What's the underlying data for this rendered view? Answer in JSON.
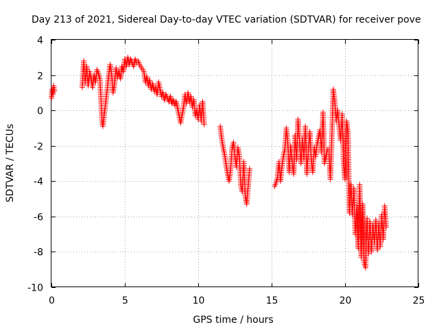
{
  "chart_data": {
    "type": "scatter",
    "title": "Day 213 of 2021, Sidereal Day-to-day VTEC variation (SDTVAR) for receiver pove",
    "xlabel": "GPS time / hours",
    "ylabel": "SDTVAR / TECUs",
    "xlim": [
      0,
      25
    ],
    "ylim": [
      -10,
      4
    ],
    "xticks": [
      0,
      5,
      10,
      15,
      20,
      25
    ],
    "yticks": [
      -10,
      -8,
      -6,
      -4,
      -2,
      0,
      2,
      4
    ],
    "xtick_labels": [
      "0",
      "5",
      "10",
      "15",
      "20",
      "25"
    ],
    "ytick_labels": [
      "-10",
      "-8",
      "-6",
      "-4",
      "-2",
      "0",
      "2",
      "4"
    ],
    "grid": true,
    "marker": "+",
    "series": [
      {
        "name": "SDTVAR",
        "color": "#ff0000",
        "points": [
          [
            0.0,
            0.7
          ],
          [
            0.05,
            1.2
          ],
          [
            0.1,
            0.9
          ],
          [
            0.15,
            1.4
          ],
          [
            0.2,
            1.1
          ],
          [
            2.1,
            1.3
          ],
          [
            2.2,
            2.8
          ],
          [
            2.3,
            1.6
          ],
          [
            2.4,
            2.5
          ],
          [
            2.5,
            1.4
          ],
          [
            2.6,
            2.2
          ],
          [
            2.7,
            1.8
          ],
          [
            2.8,
            1.3
          ],
          [
            2.9,
            2.0
          ],
          [
            3.0,
            1.6
          ],
          [
            3.1,
            2.3
          ],
          [
            3.2,
            2.1
          ],
          [
            3.3,
            1.8
          ],
          [
            3.4,
            0.2
          ],
          [
            3.45,
            -0.6
          ],
          [
            3.5,
            -0.9
          ],
          [
            3.6,
            -0.2
          ],
          [
            3.7,
            0.5
          ],
          [
            3.8,
            1.2
          ],
          [
            3.9,
            2.0
          ],
          [
            4.0,
            2.6
          ],
          [
            4.1,
            2.0
          ],
          [
            4.2,
            1.0
          ],
          [
            4.3,
            1.5
          ],
          [
            4.4,
            2.4
          ],
          [
            4.5,
            1.9
          ],
          [
            4.6,
            2.2
          ],
          [
            4.7,
            1.8
          ],
          [
            4.8,
            2.5
          ],
          [
            4.9,
            2.2
          ],
          [
            5.0,
            2.9
          ],
          [
            5.1,
            2.5
          ],
          [
            5.2,
            3.0
          ],
          [
            5.3,
            2.6
          ],
          [
            5.4,
            2.9
          ],
          [
            5.5,
            2.7
          ],
          [
            5.6,
            2.5
          ],
          [
            5.7,
            2.9
          ],
          [
            5.8,
            2.7
          ],
          [
            5.9,
            2.8
          ],
          [
            6.0,
            2.6
          ],
          [
            6.3,
            2.2
          ],
          [
            6.4,
            1.6
          ],
          [
            6.5,
            1.9
          ],
          [
            6.6,
            1.4
          ],
          [
            6.7,
            1.7
          ],
          [
            6.8,
            1.2
          ],
          [
            6.9,
            1.5
          ],
          [
            7.0,
            1.1
          ],
          [
            7.1,
            1.3
          ],
          [
            7.2,
            0.9
          ],
          [
            7.3,
            1.6
          ],
          [
            7.4,
            1.2
          ],
          [
            7.5,
            0.8
          ],
          [
            7.6,
            1.0
          ],
          [
            7.7,
            0.6
          ],
          [
            7.8,
            0.9
          ],
          [
            7.9,
            0.7
          ],
          [
            8.0,
            0.5
          ],
          [
            8.1,
            0.8
          ],
          [
            8.2,
            0.4
          ],
          [
            8.3,
            0.6
          ],
          [
            8.4,
            0.3
          ],
          [
            8.5,
            0.5
          ],
          [
            8.8,
            -0.7
          ],
          [
            9.0,
            0.2
          ],
          [
            9.1,
            0.9
          ],
          [
            9.2,
            0.4
          ],
          [
            9.3,
            1.0
          ],
          [
            9.4,
            0.5
          ],
          [
            9.5,
            0.8
          ],
          [
            9.6,
            0.2
          ],
          [
            9.7,
            0.6
          ],
          [
            9.8,
            -0.3
          ],
          [
            9.9,
            0.0
          ],
          [
            10.0,
            -0.5
          ],
          [
            10.1,
            0.3
          ],
          [
            10.2,
            -0.6
          ],
          [
            10.3,
            0.5
          ],
          [
            10.4,
            -0.8
          ],
          [
            11.5,
            -0.9
          ],
          [
            11.6,
            -1.6
          ],
          [
            11.7,
            -2.1
          ],
          [
            11.8,
            -2.5
          ],
          [
            11.9,
            -3.1
          ],
          [
            12.0,
            -3.6
          ],
          [
            12.1,
            -4.0
          ],
          [
            12.2,
            -3.4
          ],
          [
            12.3,
            -2.2
          ],
          [
            12.4,
            -1.8
          ],
          [
            12.5,
            -2.6
          ],
          [
            12.6,
            -3.2
          ],
          [
            12.7,
            -2.1
          ],
          [
            12.8,
            -2.6
          ],
          [
            12.9,
            -4.2
          ],
          [
            13.0,
            -4.6
          ],
          [
            13.1,
            -2.9
          ],
          [
            13.2,
            -4.8
          ],
          [
            13.3,
            -5.3
          ],
          [
            13.5,
            -3.3
          ],
          [
            15.2,
            -4.3
          ],
          [
            15.3,
            -4.1
          ],
          [
            15.4,
            -3.8
          ],
          [
            15.5,
            -2.9
          ],
          [
            15.6,
            -4.0
          ],
          [
            15.7,
            -3.2
          ],
          [
            15.8,
            -2.6
          ],
          [
            15.9,
            -2.2
          ],
          [
            16.0,
            -1.0
          ],
          [
            16.1,
            -1.8
          ],
          [
            16.2,
            -3.5
          ],
          [
            16.3,
            -2.0
          ],
          [
            16.4,
            -2.9
          ],
          [
            16.5,
            -3.6
          ],
          [
            16.6,
            -1.4
          ],
          [
            16.7,
            -2.8
          ],
          [
            16.8,
            -0.5
          ],
          [
            17.0,
            -3.0
          ],
          [
            17.1,
            -1.6
          ],
          [
            17.2,
            -2.7
          ],
          [
            17.3,
            -0.9
          ],
          [
            17.4,
            -3.6
          ],
          [
            17.5,
            -2.3
          ],
          [
            17.6,
            -1.2
          ],
          [
            17.7,
            -2.8
          ],
          [
            17.8,
            -3.5
          ],
          [
            17.9,
            -2.1
          ],
          [
            18.0,
            -2.6
          ],
          [
            18.1,
            -1.9
          ],
          [
            18.3,
            -1.1
          ],
          [
            18.4,
            -2.4
          ],
          [
            18.5,
            -0.1
          ],
          [
            18.6,
            -3.0
          ],
          [
            18.8,
            -2.2
          ],
          [
            18.9,
            -2.2
          ],
          [
            19.0,
            -3.9
          ],
          [
            19.1,
            -1.5
          ],
          [
            19.2,
            1.2
          ],
          [
            19.3,
            0.5
          ],
          [
            19.4,
            -0.6
          ],
          [
            19.5,
            0.0
          ],
          [
            19.6,
            -0.9
          ],
          [
            19.7,
            -1.7
          ],
          [
            19.8,
            -0.2
          ],
          [
            19.9,
            -2.9
          ],
          [
            20.0,
            -3.9
          ],
          [
            20.1,
            -0.6
          ],
          [
            20.2,
            -1.2
          ],
          [
            20.3,
            -5.8
          ],
          [
            20.4,
            -4.2
          ],
          [
            20.5,
            -5.9
          ],
          [
            20.6,
            -4.4
          ],
          [
            20.7,
            -7.0
          ],
          [
            20.8,
            -5.4
          ],
          [
            20.9,
            -7.8
          ],
          [
            21.0,
            -4.2
          ],
          [
            21.1,
            -8.3
          ],
          [
            21.2,
            -5.3
          ],
          [
            21.3,
            -8.6
          ],
          [
            21.4,
            -8.9
          ],
          [
            21.5,
            -6.1
          ],
          [
            21.6,
            -8.1
          ],
          [
            21.7,
            -6.3
          ],
          [
            21.8,
            -8.0
          ],
          [
            21.9,
            -6.5
          ],
          [
            22.0,
            -7.5
          ],
          [
            22.1,
            -6.2
          ],
          [
            22.2,
            -7.9
          ],
          [
            22.3,
            -6.4
          ],
          [
            22.4,
            -7.7
          ],
          [
            22.5,
            -5.9
          ],
          [
            22.6,
            -7.3
          ],
          [
            22.7,
            -5.4
          ],
          [
            22.8,
            -6.6
          ]
        ]
      }
    ]
  }
}
